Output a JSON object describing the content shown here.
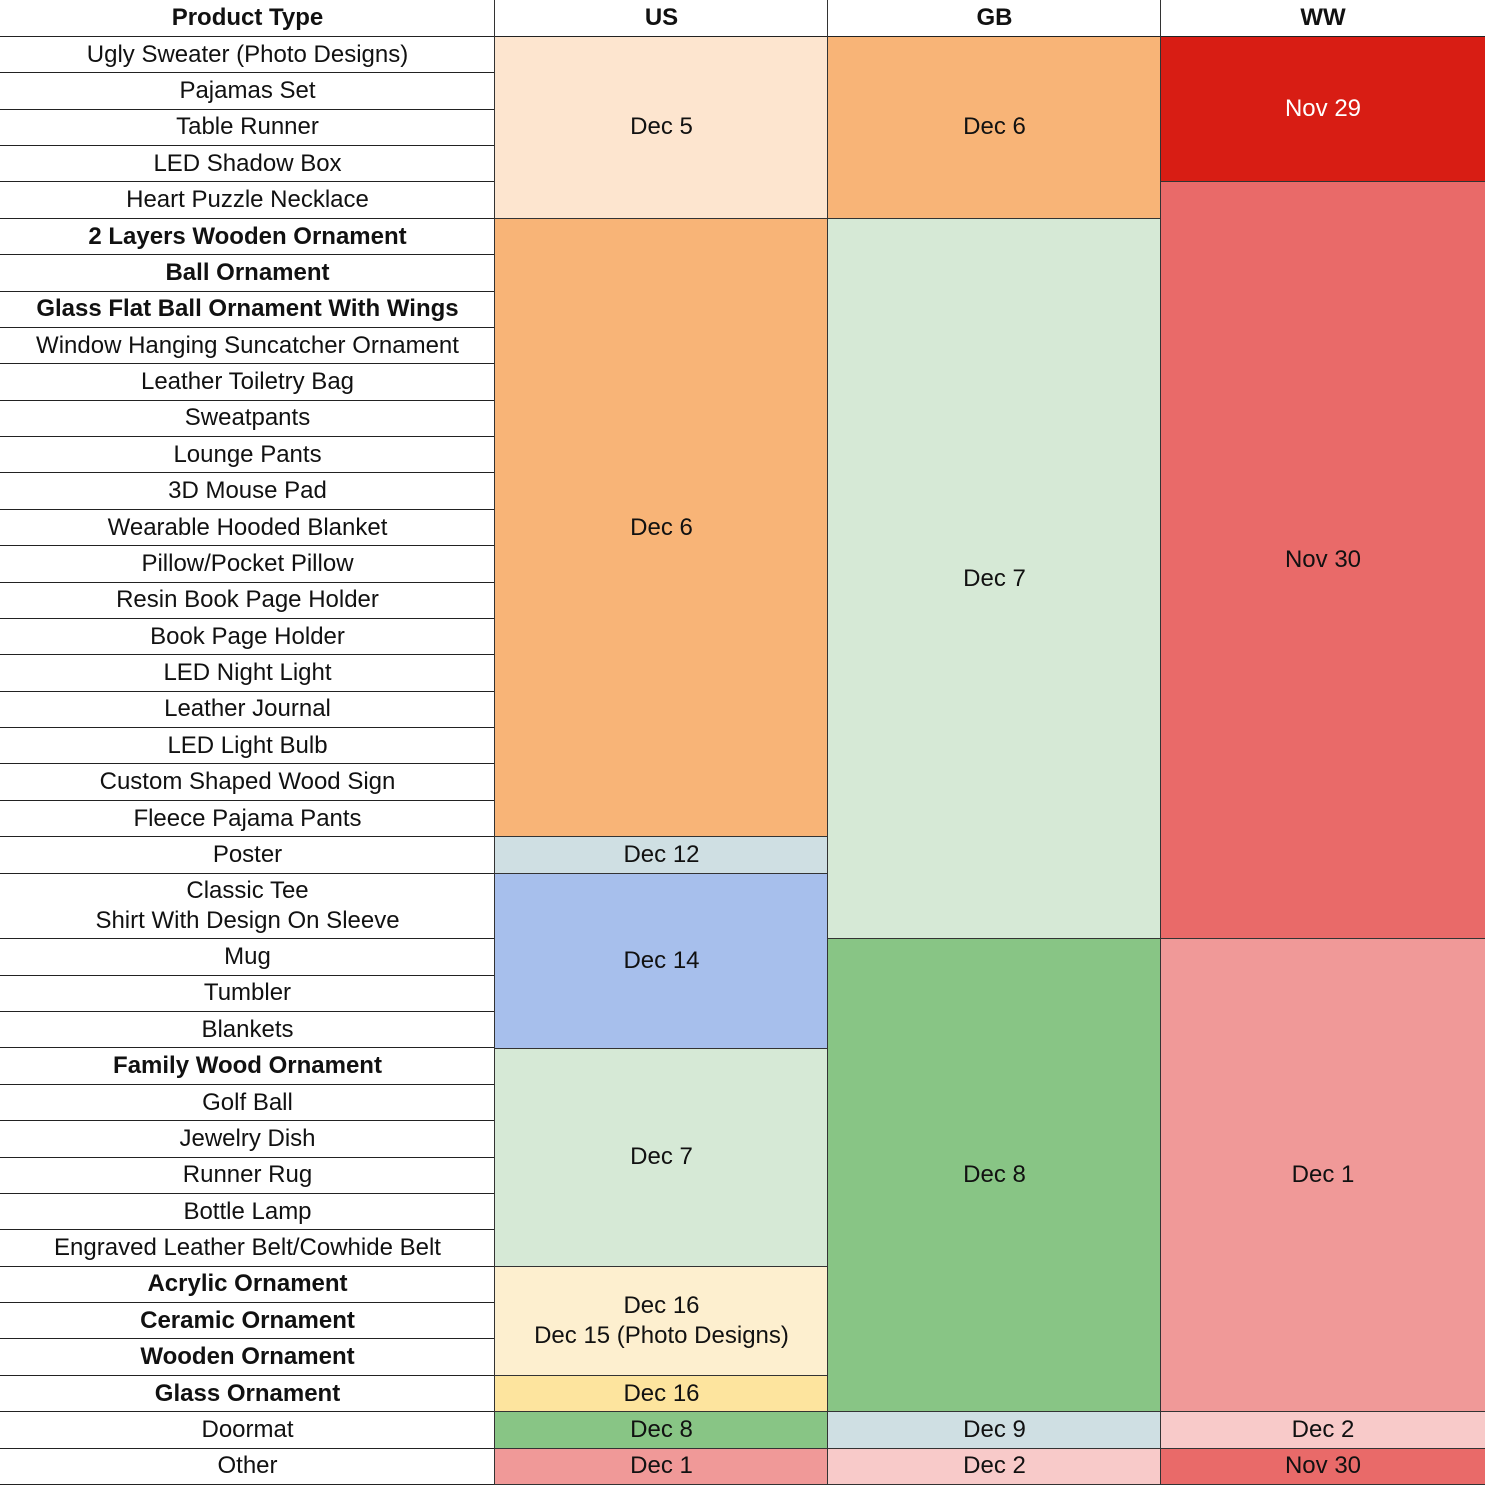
{
  "headers": {
    "product": "Product Type",
    "us": "US",
    "gb": "GB",
    "ww": "WW"
  },
  "colors": {
    "peach_light": "#fde5cf",
    "orange": "#f8b477",
    "green_light": "#d6e9d6",
    "red_dark": "#d81d14",
    "red": "#e96a69",
    "pink": "#f09998",
    "pink_light": "#f8cac9",
    "blue_grey": "#cfdfe3",
    "blue": "#a7bfec",
    "cream": "#fdefcf",
    "yellow": "#fde49e",
    "green": "#88c585"
  },
  "products": [
    {
      "label": "Ugly Sweater (Photo Designs)",
      "bold": false
    },
    {
      "label": "Pajamas Set",
      "bold": false
    },
    {
      "label": "Table Runner",
      "bold": false
    },
    {
      "label": "LED Shadow Box",
      "bold": false
    },
    {
      "label": "Heart Puzzle Necklace",
      "bold": false
    },
    {
      "label": "2 Layers Wooden Ornament",
      "bold": true
    },
    {
      "label": "Ball Ornament",
      "bold": true
    },
    {
      "label": "Glass Flat Ball Ornament With Wings",
      "bold": true
    },
    {
      "label": "Window Hanging Suncatcher Ornament",
      "bold": false
    },
    {
      "label": "Leather Toiletry Bag",
      "bold": false
    },
    {
      "label": "Sweatpants",
      "bold": false
    },
    {
      "label": "Lounge Pants",
      "bold": false
    },
    {
      "label": "3D Mouse Pad",
      "bold": false
    },
    {
      "label": "Wearable Hooded Blanket",
      "bold": false
    },
    {
      "label": "Pillow/Pocket Pillow",
      "bold": false
    },
    {
      "label": "Resin Book Page Holder",
      "bold": false
    },
    {
      "label": "Book Page Holder",
      "bold": false
    },
    {
      "label": "LED Night Light",
      "bold": false
    },
    {
      "label": "Leather Journal",
      "bold": false
    },
    {
      "label": "LED Light Bulb",
      "bold": false
    },
    {
      "label": "Custom Shaped Wood Sign",
      "bold": false
    },
    {
      "label": "Fleece Pajama Pants",
      "bold": false
    },
    {
      "label": "Poster",
      "bold": false
    },
    {
      "label": "Classic Tee\nShirt With Design On Sleeve",
      "bold": false
    },
    {
      "label": "Mug",
      "bold": false
    },
    {
      "label": "Tumbler",
      "bold": false
    },
    {
      "label": "Blankets",
      "bold": false
    },
    {
      "label": "Family Wood Ornament",
      "bold": true
    },
    {
      "label": "Golf Ball",
      "bold": false
    },
    {
      "label": "Jewelry Dish",
      "bold": false
    },
    {
      "label": "Runner Rug",
      "bold": false
    },
    {
      "label": "Bottle Lamp",
      "bold": false
    },
    {
      "label": "Engraved Leather Belt/Cowhide Belt",
      "bold": false
    },
    {
      "label": "Acrylic Ornament",
      "bold": true
    },
    {
      "label": "Ceramic Ornament",
      "bold": true
    },
    {
      "label": "Wooden Ornament",
      "bold": true
    },
    {
      "label": "Glass Ornament",
      "bold": true
    },
    {
      "label": "Doormat",
      "bold": false
    },
    {
      "label": "Other",
      "bold": false
    }
  ],
  "us": [
    {
      "text": "Dec 5",
      "start": 0,
      "end": 4,
      "color": "#fde5cf"
    },
    {
      "text": "Dec 6",
      "start": 5,
      "end": 21,
      "color": "#f8b477"
    },
    {
      "text": "Dec 12",
      "start": 22,
      "end": 22,
      "color": "#cfdfe3"
    },
    {
      "text": "Dec 14",
      "start": 23,
      "end": 26,
      "color": "#a7bfec"
    },
    {
      "text": "Dec 7",
      "start": 27,
      "end": 32,
      "color": "#d6e9d6"
    },
    {
      "text": "Dec 16\nDec 15 (Photo Designs)",
      "start": 33,
      "end": 35,
      "color": "#fdefcf"
    },
    {
      "text": "Dec 16",
      "start": 36,
      "end": 36,
      "color": "#fde49e"
    },
    {
      "text": "Dec 8",
      "start": 37,
      "end": 37,
      "color": "#88c585"
    },
    {
      "text": "Dec 1",
      "start": 38,
      "end": 38,
      "color": "#f09998"
    }
  ],
  "gb": [
    {
      "text": "Dec 6",
      "start": 0,
      "end": 4,
      "color": "#f8b477"
    },
    {
      "text": "Dec 7",
      "start": 5,
      "end": 23,
      "color": "#d6e9d6"
    },
    {
      "text": "Dec 8",
      "start": 24,
      "end": 36,
      "color": "#88c585"
    },
    {
      "text": "Dec 9",
      "start": 37,
      "end": 37,
      "color": "#cfdfe3"
    },
    {
      "text": "Dec 2",
      "start": 38,
      "end": 38,
      "color": "#f8cac9"
    }
  ],
  "ww": [
    {
      "text": "Nov 29",
      "start": 0,
      "end": 3,
      "color": "#d81d14",
      "white": true
    },
    {
      "text": "Nov 30",
      "start": 4,
      "end": 23,
      "color": "#e96a69"
    },
    {
      "text": "Dec 1",
      "start": 24,
      "end": 36,
      "color": "#f09998"
    },
    {
      "text": "Dec 2",
      "start": 37,
      "end": 37,
      "color": "#f8cac9"
    },
    {
      "text": "Nov 30",
      "start": 38,
      "end": 38,
      "color": "#e96a69"
    }
  ]
}
